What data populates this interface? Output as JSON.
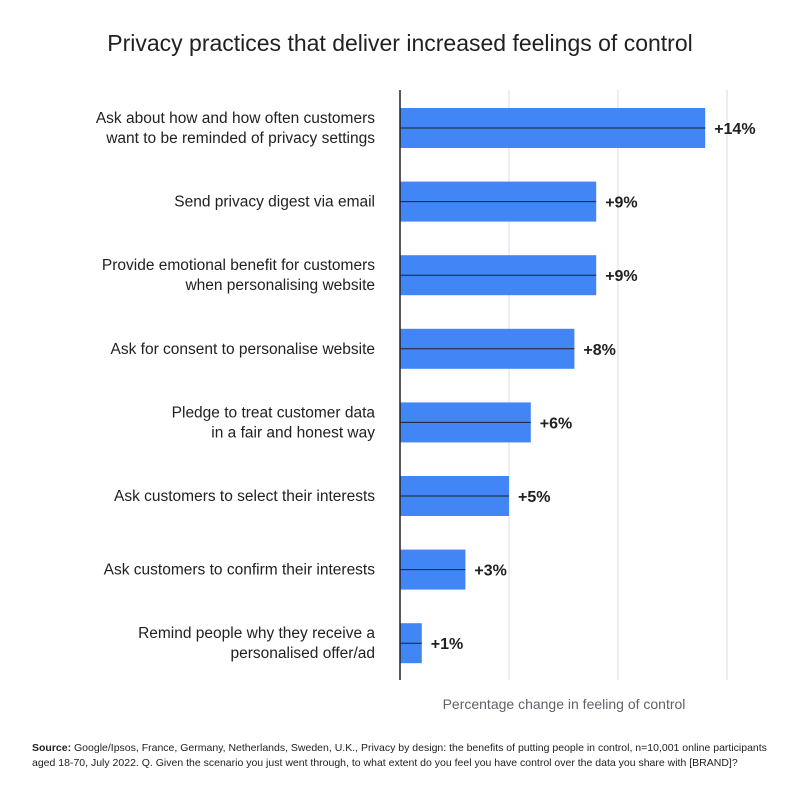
{
  "chart_data": {
    "type": "bar",
    "orientation": "horizontal",
    "title": "Privacy practices that deliver increased feelings of control",
    "xlabel": "Percentage change in feeling of control",
    "ylabel": "",
    "xlim": [
      0,
      15
    ],
    "grid": true,
    "bar_color": "#4285f4",
    "categories": [
      [
        "Ask about how and how often customers",
        "want to be reminded of privacy settings"
      ],
      [
        "Send privacy digest via email"
      ],
      [
        "Provide emotional benefit for customers",
        "when personalising website"
      ],
      [
        "Ask for consent to personalise website"
      ],
      [
        "Pledge to treat customer data",
        "in a fair and honest way"
      ],
      [
        "Ask customers to select their interests"
      ],
      [
        "Ask customers to confirm their interests"
      ],
      [
        "Remind people why they receive a",
        "personalised offer/ad"
      ]
    ],
    "values": [
      14,
      9,
      9,
      8,
      6,
      5,
      3,
      1
    ],
    "value_labels": [
      "+14%",
      "+9%",
      "+9%",
      "+8%",
      "+6%",
      "+5%",
      "+3%",
      "+1%"
    ]
  },
  "source": {
    "prefix": "Source:",
    "text": "Google/Ipsos, France, Germany, Netherlands, Sweden, U.K., Privacy by design: the benefits of putting people in control, n=10,001 online participants aged 18-70, July 2022. Q. Given the scenario you just went through, to what extent do you feel you have control over the data you share with [BRAND]?"
  }
}
